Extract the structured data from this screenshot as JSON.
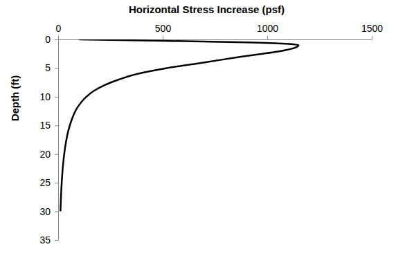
{
  "chart_data": {
    "type": "line",
    "title": "Horizontal Stress Increase (psf)",
    "y_label": "Depth (ft)",
    "series": [
      {
        "color": "#000000",
        "x": [
          100,
          500,
          900,
          1150,
          1130,
          1070,
          880,
          700,
          520,
          380,
          290,
          220,
          170,
          135,
          90,
          65,
          48,
          37,
          29,
          23,
          17,
          13,
          11
        ],
        "values": [
          0,
          0.25,
          0.5,
          1,
          1.5,
          2,
          3,
          4,
          5,
          6,
          7,
          8,
          9,
          10,
          12,
          14,
          16,
          18,
          20,
          22,
          25,
          28,
          30
        ]
      }
    ],
    "xlim": [
      0,
      1500
    ],
    "xticks": [
      0,
      500,
      1000,
      1500
    ],
    "ylim": [
      35,
      0
    ],
    "yticks": [
      0,
      5,
      10,
      15,
      20,
      25,
      30,
      35
    ],
    "grid": false
  }
}
